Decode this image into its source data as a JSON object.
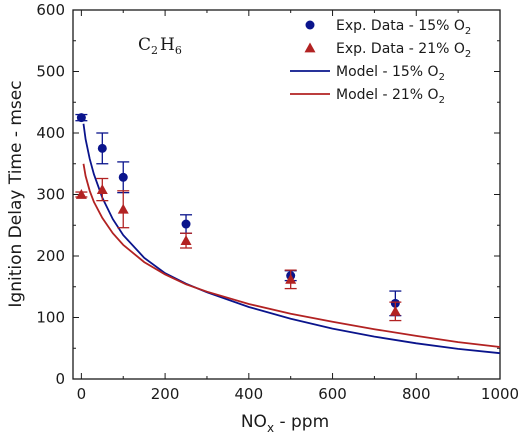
{
  "chart_data": {
    "type": "scatter",
    "xlabel": "NO",
    "xlabel_sub": "x",
    "xlabel_suffix": " - ppm",
    "ylabel": "Ignition Delay Time - msec",
    "xlim": [
      -20,
      1000
    ],
    "ylim": [
      0,
      600
    ],
    "xticks": [
      0,
      200,
      400,
      600,
      800,
      1000
    ],
    "yticks": [
      0,
      100,
      200,
      300,
      400,
      500,
      600
    ],
    "grid": false,
    "legend_position": "top-right",
    "annotation": {
      "base1": "C",
      "sub1": "2",
      "base2": "H",
      "sub2": "6"
    },
    "series": [
      {
        "name": "Exp. Data - 15% O",
        "name_sub": "2",
        "kind": "scatter",
        "marker": "circle",
        "color": "#0a148c",
        "x": [
          0,
          50,
          100,
          250,
          500,
          750
        ],
        "y": [
          425,
          375,
          328,
          252,
          168,
          123
        ],
        "err": [
          5,
          25,
          25,
          15,
          8,
          20
        ]
      },
      {
        "name": "Exp. Data - 21% O",
        "name_sub": "2",
        "kind": "scatter",
        "marker": "triangle",
        "color": "#b22222",
        "x": [
          0,
          50,
          100,
          250,
          500,
          750
        ],
        "y": [
          300,
          308,
          276,
          225,
          162,
          110
        ],
        "err": [
          4,
          18,
          30,
          12,
          15,
          15
        ]
      },
      {
        "name": " Model - 15% O",
        "name_sub": "2",
        "kind": "line",
        "color": "#0a148c",
        "x": [
          5,
          10,
          20,
          30,
          50,
          75,
          100,
          150,
          200,
          250,
          300,
          400,
          500,
          600,
          700,
          800,
          900,
          1000
        ],
        "y": [
          415,
          390,
          358,
          333,
          295,
          260,
          234,
          197,
          172,
          155,
          141,
          117,
          98,
          82,
          69,
          58,
          49,
          42
        ]
      },
      {
        "name": "Model - 21% O",
        "name_sub": "2",
        "kind": "line",
        "color": "#b22222",
        "x": [
          5,
          10,
          20,
          30,
          50,
          75,
          100,
          150,
          200,
          250,
          300,
          400,
          500,
          600,
          700,
          800,
          900,
          1000
        ],
        "y": [
          350,
          330,
          306,
          288,
          262,
          237,
          218,
          190,
          170,
          154,
          142,
          122,
          106,
          93,
          81,
          70,
          60,
          52
        ]
      }
    ]
  }
}
